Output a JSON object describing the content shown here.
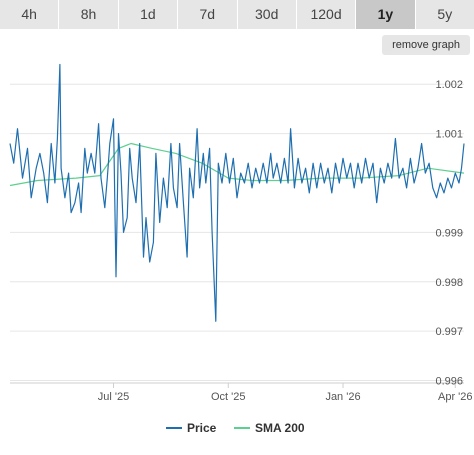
{
  "tabs": [
    {
      "label": "4h",
      "active": false
    },
    {
      "label": "8h",
      "active": false
    },
    {
      "label": "1d",
      "active": false
    },
    {
      "label": "7d",
      "active": false
    },
    {
      "label": "30d",
      "active": false
    },
    {
      "label": "120d",
      "active": false
    },
    {
      "label": "1y",
      "active": true
    },
    {
      "label": "5y",
      "active": false
    }
  ],
  "remove_graph_label": "remove graph",
  "colors": {
    "price": "#1f6fb0",
    "sma": "#5cd08f",
    "grid": "#e6e6e6"
  },
  "chart_data": {
    "type": "line",
    "y_ticks": [
      "1.002",
      "1.001",
      "0.999",
      "0.998",
      "0.997",
      "0.996"
    ],
    "y_tick_values": [
      1.002,
      1.001,
      0.999,
      0.998,
      0.997,
      0.996
    ],
    "ylim": [
      0.99595,
      1.00245
    ],
    "x_ticks": [
      "Jul '25",
      "Oct '25",
      "Jan '26",
      "Apr '26"
    ],
    "x_tick_values": [
      "2025-07-01",
      "2025-10-01",
      "2026-01-01",
      "2026-04-01"
    ],
    "xlim": [
      "2025-04-09",
      "2026-04-08"
    ],
    "grid": true,
    "legend_position": "bottom",
    "series": [
      {
        "name": "Price",
        "color": "#1f6fb0",
        "points": [
          [
            "2025-04-09",
            1.0008
          ],
          [
            "2025-04-12",
            1.0004
          ],
          [
            "2025-04-15",
            1.0011
          ],
          [
            "2025-04-19",
            1.0001
          ],
          [
            "2025-04-23",
            1.0007
          ],
          [
            "2025-04-26",
            0.9997
          ],
          [
            "2025-04-30",
            1.0003
          ],
          [
            "2025-05-03",
            1.0006
          ],
          [
            "2025-05-06",
            1.0002
          ],
          [
            "2025-05-09",
            0.9996
          ],
          [
            "2025-05-12",
            1.0008
          ],
          [
            "2025-05-15",
            1.0
          ],
          [
            "2025-05-17",
            1.0009
          ],
          [
            "2025-05-19",
            1.0024
          ],
          [
            "2025-05-20",
            1.0003
          ],
          [
            "2025-05-23",
            0.9997
          ],
          [
            "2025-05-26",
            1.0002
          ],
          [
            "2025-05-28",
            0.9994
          ],
          [
            "2025-05-31",
            0.9996
          ],
          [
            "2025-06-03",
            1.0
          ],
          [
            "2025-06-05",
            0.9994
          ],
          [
            "2025-06-08",
            1.0007
          ],
          [
            "2025-06-10",
            1.0002
          ],
          [
            "2025-06-13",
            1.0006
          ],
          [
            "2025-06-16",
            1.0002
          ],
          [
            "2025-06-19",
            1.0012
          ],
          [
            "2025-06-21",
            1.0001
          ],
          [
            "2025-06-24",
            0.9995
          ],
          [
            "2025-06-26",
            1.0001
          ],
          [
            "2025-06-28",
            1.0008
          ],
          [
            "2025-07-01",
            1.0013
          ],
          [
            "2025-07-03",
            0.9981
          ],
          [
            "2025-07-05",
            1.001
          ],
          [
            "2025-07-07",
            1.0002
          ],
          [
            "2025-07-09",
            0.999
          ],
          [
            "2025-07-12",
            0.9993
          ],
          [
            "2025-07-14",
            1.0007
          ],
          [
            "2025-07-16",
            1.0001
          ],
          [
            "2025-07-19",
            0.9996
          ],
          [
            "2025-07-22",
            1.0008
          ],
          [
            "2025-07-25",
            0.9985
          ],
          [
            "2025-07-27",
            0.9993
          ],
          [
            "2025-07-30",
            0.9984
          ],
          [
            "2025-08-02",
            0.9988
          ],
          [
            "2025-08-04",
            1.0006
          ],
          [
            "2025-08-07",
            0.9992
          ],
          [
            "2025-08-10",
            1.0001
          ],
          [
            "2025-08-13",
            0.9995
          ],
          [
            "2025-08-16",
            1.0008
          ],
          [
            "2025-08-18",
            0.9999
          ],
          [
            "2025-08-21",
            0.9995
          ],
          [
            "2025-08-23",
            1.0008
          ],
          [
            "2025-08-26",
            0.9996
          ],
          [
            "2025-08-29",
            0.9985
          ],
          [
            "2025-08-31",
            1.0003
          ],
          [
            "2025-09-03",
            0.9997
          ],
          [
            "2025-09-06",
            1.0011
          ],
          [
            "2025-09-08",
            0.9999
          ],
          [
            "2025-09-11",
            1.0006
          ],
          [
            "2025-09-13",
            1.0
          ],
          [
            "2025-09-16",
            1.0007
          ],
          [
            "2025-09-18",
            0.999
          ],
          [
            "2025-09-21",
            0.9972
          ],
          [
            "2025-09-23",
            1.0004
          ],
          [
            "2025-09-26",
            1.0
          ],
          [
            "2025-09-29",
            1.0006
          ],
          [
            "2025-10-02",
            1.0
          ],
          [
            "2025-10-05",
            1.0005
          ],
          [
            "2025-10-08",
            0.9997
          ],
          [
            "2025-10-11",
            1.0002
          ],
          [
            "2025-10-14",
            1.0
          ],
          [
            "2025-10-17",
            1.0004
          ],
          [
            "2025-10-20",
            0.9999
          ],
          [
            "2025-10-23",
            1.0003
          ],
          [
            "2025-10-26",
            1.0
          ],
          [
            "2025-10-29",
            1.0004
          ],
          [
            "2025-11-01",
            1.0
          ],
          [
            "2025-11-04",
            1.0006
          ],
          [
            "2025-11-06",
            1.0001
          ],
          [
            "2025-11-09",
            1.0004
          ],
          [
            "2025-11-12",
            1.0
          ],
          [
            "2025-11-15",
            1.0005
          ],
          [
            "2025-11-18",
            1.0
          ],
          [
            "2025-11-20",
            1.0011
          ],
          [
            "2025-11-23",
            0.9999
          ],
          [
            "2025-11-26",
            1.0005
          ],
          [
            "2025-11-29",
            1.0
          ],
          [
            "2025-12-02",
            1.0003
          ],
          [
            "2025-12-05",
            0.9998
          ],
          [
            "2025-12-08",
            1.0004
          ],
          [
            "2025-12-11",
            0.9999
          ],
          [
            "2025-12-14",
            1.0004
          ],
          [
            "2025-12-17",
            1.0
          ],
          [
            "2025-12-20",
            1.0003
          ],
          [
            "2025-12-23",
            0.9998
          ],
          [
            "2025-12-26",
            1.0004
          ],
          [
            "2025-12-29",
            1.0
          ],
          [
            "2026-01-01",
            1.0005
          ],
          [
            "2026-01-04",
            1.0001
          ],
          [
            "2026-01-07",
            1.0004
          ],
          [
            "2026-01-10",
            0.9999
          ],
          [
            "2026-01-13",
            1.0004
          ],
          [
            "2026-01-16",
            1.0
          ],
          [
            "2026-01-19",
            1.0005
          ],
          [
            "2026-01-22",
            1.0001
          ],
          [
            "2026-01-25",
            1.0004
          ],
          [
            "2026-01-28",
            0.9996
          ],
          [
            "2026-01-31",
            1.0003
          ],
          [
            "2026-02-03",
            1.0
          ],
          [
            "2026-02-06",
            1.0004
          ],
          [
            "2026-02-09",
            1.0001
          ],
          [
            "2026-02-12",
            1.0009
          ],
          [
            "2026-02-15",
            1.0001
          ],
          [
            "2026-02-18",
            1.0003
          ],
          [
            "2026-02-21",
            0.9999
          ],
          [
            "2026-02-24",
            1.0005
          ],
          [
            "2026-02-27",
            1.0
          ],
          [
            "2026-03-02",
            1.0003
          ],
          [
            "2026-03-05",
            1.0008
          ],
          [
            "2026-03-08",
            1.0002
          ],
          [
            "2026-03-11",
            1.0004
          ],
          [
            "2026-03-14",
            0.9999
          ],
          [
            "2026-03-17",
            0.9997
          ],
          [
            "2026-03-20",
            1.0
          ],
          [
            "2026-03-23",
            0.9998
          ],
          [
            "2026-03-26",
            1.0001
          ],
          [
            "2026-03-29",
            0.9999
          ],
          [
            "2026-04-01",
            1.0002
          ],
          [
            "2026-04-04",
            1.0
          ],
          [
            "2026-04-06",
            1.0003
          ],
          [
            "2026-04-08",
            1.0008
          ]
        ]
      },
      {
        "name": "SMA 200",
        "color": "#5cd08f",
        "points": [
          [
            "2025-04-09",
            0.99995
          ],
          [
            "2025-05-01",
            1.00005
          ],
          [
            "2025-06-01",
            1.0001
          ],
          [
            "2025-06-20",
            1.00015
          ],
          [
            "2025-07-05",
            1.0007
          ],
          [
            "2025-07-15",
            1.0008
          ],
          [
            "2025-08-01",
            1.0007
          ],
          [
            "2025-08-20",
            1.0006
          ],
          [
            "2025-09-10",
            1.0004
          ],
          [
            "2025-10-01",
            1.0001
          ],
          [
            "2025-10-20",
            1.00005
          ],
          [
            "2025-11-15",
            1.00005
          ],
          [
            "2025-12-15",
            1.0001
          ],
          [
            "2026-01-15",
            1.0001
          ],
          [
            "2026-02-15",
            1.00015
          ],
          [
            "2026-03-10",
            1.0003
          ],
          [
            "2026-04-08",
            1.0002
          ]
        ]
      }
    ]
  }
}
